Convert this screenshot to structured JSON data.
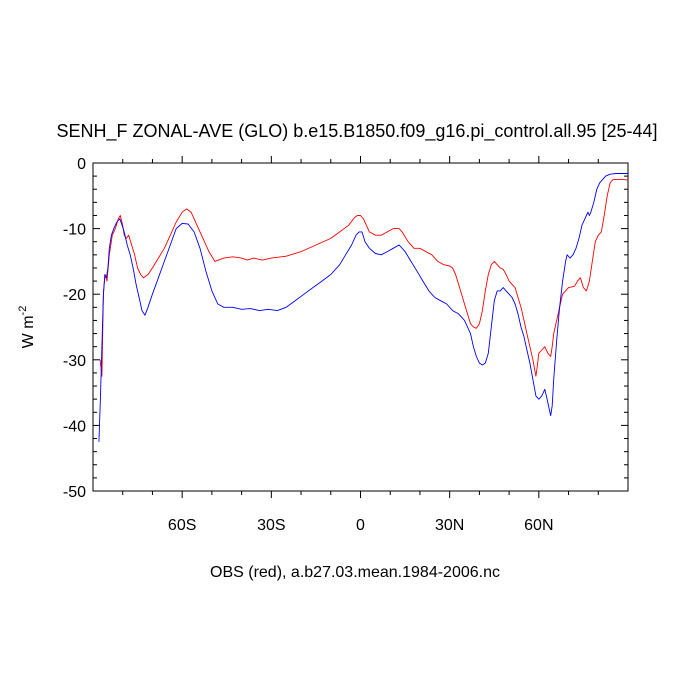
{
  "chart_data": {
    "type": "line",
    "title": "SENH_F ZONAL-AVE (GLO) b.e15.B1850.f09_g16.pi_control.all.95 [25-44]",
    "ylabel": "W m",
    "ylabel_superscript": "-2",
    "xlabel": "OBS (red), a.b27.03.mean.1984-2006.nc",
    "xlim": [
      -90,
      90
    ],
    "ylim": [
      -50,
      0
    ],
    "xticks": [
      {
        "value": -60,
        "label": "60S"
      },
      {
        "value": -30,
        "label": "30S"
      },
      {
        "value": 0,
        "label": "0"
      },
      {
        "value": 30,
        "label": "30N"
      },
      {
        "value": 60,
        "label": "60N"
      }
    ],
    "yticks": [
      {
        "value": 0,
        "label": "0"
      },
      {
        "value": -10,
        "label": "-10"
      },
      {
        "value": -20,
        "label": "-20"
      },
      {
        "value": -30,
        "label": "-30"
      },
      {
        "value": -40,
        "label": "-40"
      },
      {
        "value": -50,
        "label": "-50"
      }
    ],
    "series": [
      {
        "color": "#ff0000",
        "points": [
          [
            -87.6,
            -30
          ],
          [
            -87.0,
            -32.5
          ],
          [
            -86.5,
            -20
          ],
          [
            -86.0,
            -17
          ],
          [
            -85.3,
            -18
          ],
          [
            -84.5,
            -14
          ],
          [
            -83.5,
            -11
          ],
          [
            -82.5,
            -10
          ],
          [
            -81.5,
            -8.5
          ],
          [
            -80.8,
            -8
          ],
          [
            -80.0,
            -9.5
          ],
          [
            -79.5,
            -11
          ],
          [
            -78.8,
            -11.5
          ],
          [
            -78.0,
            -11
          ],
          [
            -77.0,
            -12.5
          ],
          [
            -76.0,
            -14
          ],
          [
            -75.0,
            -16
          ],
          [
            -74.0,
            -17
          ],
          [
            -73.0,
            -17.5
          ],
          [
            -71.5,
            -17
          ],
          [
            -70,
            -16
          ],
          [
            -68,
            -14.5
          ],
          [
            -66,
            -13
          ],
          [
            -64,
            -11
          ],
          [
            -62,
            -9
          ],
          [
            -60,
            -7.5
          ],
          [
            -58.5,
            -7
          ],
          [
            -57,
            -7.5
          ],
          [
            -55,
            -9.5
          ],
          [
            -53,
            -11.5
          ],
          [
            -51,
            -13.5
          ],
          [
            -49,
            -15
          ],
          [
            -46,
            -14.5
          ],
          [
            -43,
            -14.3
          ],
          [
            -40,
            -14.5
          ],
          [
            -38,
            -14.8
          ],
          [
            -36,
            -14.5
          ],
          [
            -33,
            -14.8
          ],
          [
            -30,
            -14.5
          ],
          [
            -25,
            -14.2
          ],
          [
            -20,
            -13.5
          ],
          [
            -15,
            -12.5
          ],
          [
            -10,
            -11.5
          ],
          [
            -7,
            -10.5
          ],
          [
            -4,
            -9.5
          ],
          [
            -2,
            -8.3
          ],
          [
            -1,
            -8
          ],
          [
            0,
            -8
          ],
          [
            1,
            -8.5
          ],
          [
            2,
            -9.5
          ],
          [
            3,
            -10.5
          ],
          [
            5,
            -11
          ],
          [
            7,
            -11
          ],
          [
            9,
            -10.5
          ],
          [
            11,
            -10
          ],
          [
            13,
            -10
          ],
          [
            14,
            -10.5
          ],
          [
            16,
            -12
          ],
          [
            18,
            -13
          ],
          [
            20,
            -13
          ],
          [
            22,
            -13.5
          ],
          [
            24,
            -14
          ],
          [
            26,
            -15
          ],
          [
            28,
            -15.5
          ],
          [
            30,
            -15.7
          ],
          [
            31,
            -16
          ],
          [
            32,
            -17
          ],
          [
            33,
            -18.5
          ],
          [
            34,
            -20
          ],
          [
            35,
            -21.5
          ],
          [
            36,
            -23
          ],
          [
            37,
            -24.5
          ],
          [
            38,
            -25
          ],
          [
            39,
            -25.2
          ],
          [
            40,
            -24.5
          ],
          [
            41,
            -22.5
          ],
          [
            42,
            -19.5
          ],
          [
            43,
            -17
          ],
          [
            44,
            -15.5
          ],
          [
            45,
            -15
          ],
          [
            46,
            -15.5
          ],
          [
            47,
            -16
          ],
          [
            48,
            -16.2
          ],
          [
            49,
            -17
          ],
          [
            50,
            -18
          ],
          [
            51,
            -18.5
          ],
          [
            52,
            -19
          ],
          [
            53,
            -20.5
          ],
          [
            54,
            -22
          ],
          [
            55,
            -24
          ],
          [
            56,
            -26
          ],
          [
            57,
            -28
          ],
          [
            58,
            -30
          ],
          [
            59,
            -32.5
          ],
          [
            59.5,
            -31
          ],
          [
            60,
            -29
          ],
          [
            61,
            -28.5
          ],
          [
            62,
            -28
          ],
          [
            63,
            -29
          ],
          [
            64,
            -29.5
          ],
          [
            64.5,
            -28
          ],
          [
            65,
            -26
          ],
          [
            66,
            -24
          ],
          [
            67,
            -22
          ],
          [
            68,
            -20
          ],
          [
            70,
            -19
          ],
          [
            72,
            -18.8
          ],
          [
            73,
            -18
          ],
          [
            74,
            -17.5
          ],
          [
            75,
            -19
          ],
          [
            76,
            -19.5
          ],
          [
            77,
            -18
          ],
          [
            78,
            -15
          ],
          [
            79,
            -12
          ],
          [
            80,
            -11
          ],
          [
            81,
            -10.5
          ],
          [
            82,
            -8
          ],
          [
            83,
            -5
          ],
          [
            84,
            -3
          ],
          [
            85,
            -2.5
          ],
          [
            86,
            -2.5
          ],
          [
            88,
            -2.5
          ],
          [
            90,
            -2.6
          ]
        ]
      },
      {
        "color": "#0000ff",
        "points": [
          [
            -88.0,
            -42.5
          ],
          [
            -87.5,
            -36
          ],
          [
            -87.0,
            -28
          ],
          [
            -86.5,
            -20
          ],
          [
            -86.0,
            -17
          ],
          [
            -85.5,
            -17.5
          ],
          [
            -85.0,
            -16
          ],
          [
            -84.5,
            -13
          ],
          [
            -83.8,
            -11
          ],
          [
            -83.0,
            -10
          ],
          [
            -82.0,
            -9
          ],
          [
            -81.0,
            -8.5
          ],
          [
            -80.2,
            -9.5
          ],
          [
            -79.5,
            -10.5
          ],
          [
            -78.5,
            -12.5
          ],
          [
            -77.5,
            -14
          ],
          [
            -76.5,
            -16
          ],
          [
            -75.5,
            -18.5
          ],
          [
            -74.5,
            -20.5
          ],
          [
            -73.5,
            -22.5
          ],
          [
            -72.5,
            -23.2
          ],
          [
            -71.5,
            -22
          ],
          [
            -70,
            -20
          ],
          [
            -68,
            -17.5
          ],
          [
            -66,
            -15
          ],
          [
            -64,
            -12.5
          ],
          [
            -62,
            -10
          ],
          [
            -60,
            -9.2
          ],
          [
            -58,
            -9.3
          ],
          [
            -56,
            -10.5
          ],
          [
            -54,
            -13
          ],
          [
            -52,
            -16.5
          ],
          [
            -50,
            -19.5
          ],
          [
            -48,
            -21.5
          ],
          [
            -46,
            -22
          ],
          [
            -43,
            -22
          ],
          [
            -40,
            -22.3
          ],
          [
            -37,
            -22.2
          ],
          [
            -34,
            -22.5
          ],
          [
            -31,
            -22.3
          ],
          [
            -28,
            -22.5
          ],
          [
            -25,
            -22
          ],
          [
            -22,
            -21
          ],
          [
            -19,
            -20
          ],
          [
            -16,
            -19
          ],
          [
            -13,
            -18
          ],
          [
            -10,
            -17
          ],
          [
            -7,
            -15.5
          ],
          [
            -5,
            -14
          ],
          [
            -3,
            -12.5
          ],
          [
            -1.5,
            -11
          ],
          [
            -0.5,
            -10.5
          ],
          [
            0.5,
            -10.5
          ],
          [
            1.5,
            -12
          ],
          [
            3,
            -13
          ],
          [
            5,
            -13.8
          ],
          [
            7,
            -14
          ],
          [
            9,
            -13.5
          ],
          [
            11,
            -13
          ],
          [
            13,
            -12.5
          ],
          [
            15,
            -13.5
          ],
          [
            17,
            -15
          ],
          [
            19,
            -16.5
          ],
          [
            21,
            -18
          ],
          [
            23,
            -19.5
          ],
          [
            25,
            -20.5
          ],
          [
            27,
            -21
          ],
          [
            29,
            -21.5
          ],
          [
            31,
            -22.5
          ],
          [
            33,
            -23
          ],
          [
            34,
            -23.5
          ],
          [
            35,
            -24
          ],
          [
            36,
            -25
          ],
          [
            37,
            -26
          ],
          [
            38,
            -28
          ],
          [
            39,
            -29.5
          ],
          [
            40,
            -30.5
          ],
          [
            41,
            -30.8
          ],
          [
            42,
            -30.5
          ],
          [
            43,
            -29
          ],
          [
            44,
            -25
          ],
          [
            45,
            -21
          ],
          [
            46,
            -19.5
          ],
          [
            47,
            -19.5
          ],
          [
            48,
            -19
          ],
          [
            49,
            -19.5
          ],
          [
            50,
            -20
          ],
          [
            51,
            -20.5
          ],
          [
            52,
            -21.5
          ],
          [
            53,
            -23
          ],
          [
            54,
            -25
          ],
          [
            55,
            -26.5
          ],
          [
            56,
            -28.5
          ],
          [
            57,
            -30.5
          ],
          [
            58,
            -33
          ],
          [
            59,
            -35.5
          ],
          [
            60,
            -36
          ],
          [
            61,
            -35.5
          ],
          [
            62,
            -34.5
          ],
          [
            63,
            -36.5
          ],
          [
            63.5,
            -37.5
          ],
          [
            64,
            -38.5
          ],
          [
            64.5,
            -37
          ],
          [
            65,
            -33
          ],
          [
            66,
            -27
          ],
          [
            67,
            -22
          ],
          [
            68,
            -18
          ],
          [
            69,
            -15
          ],
          [
            69.5,
            -14
          ],
          [
            70.5,
            -14.5
          ],
          [
            71.5,
            -14
          ],
          [
            72.5,
            -13
          ],
          [
            73.5,
            -11.5
          ],
          [
            74.5,
            -9.5
          ],
          [
            75.5,
            -8.5
          ],
          [
            76.5,
            -7.5
          ],
          [
            77,
            -8
          ],
          [
            77.5,
            -7.5
          ],
          [
            78.5,
            -6
          ],
          [
            79.5,
            -4
          ],
          [
            80.5,
            -3
          ],
          [
            81.5,
            -2.5
          ],
          [
            82.5,
            -2
          ],
          [
            84,
            -1.7
          ],
          [
            86,
            -1.6
          ],
          [
            90,
            -1.6
          ]
        ]
      }
    ]
  }
}
